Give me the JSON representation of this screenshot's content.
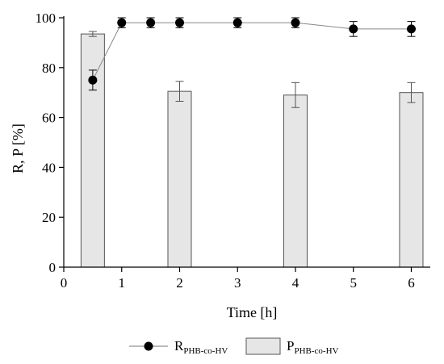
{
  "chart_data": {
    "type": "bar+line",
    "xlabel": "Time [h]",
    "ylabel": "R, P [%]",
    "xlim": [
      0,
      6.3
    ],
    "ylim": [
      0,
      100
    ],
    "xticks": [
      0,
      1,
      2,
      3,
      4,
      5,
      6
    ],
    "yticks": [
      0,
      20,
      40,
      60,
      80,
      100
    ],
    "grid": false,
    "legend_position": "bottom",
    "bars": {
      "legend_main": "P",
      "legend_sub": "PHB-co-HV",
      "color": "#e6e6e6",
      "x": [
        0.5,
        2,
        4,
        6
      ],
      "values": [
        93.5,
        70.5,
        69,
        70
      ],
      "errors": [
        1,
        4,
        5,
        4
      ]
    },
    "line": {
      "legend_main": "R",
      "legend_sub": "PHB-co-HV",
      "color": "#000000",
      "x": [
        0.5,
        1,
        1.5,
        2,
        3,
        4,
        5,
        6
      ],
      "values": [
        75,
        98,
        98,
        98,
        98,
        98,
        95.5,
        95.5
      ],
      "errors": [
        4,
        2,
        2,
        2,
        2,
        2,
        3,
        3
      ]
    }
  }
}
